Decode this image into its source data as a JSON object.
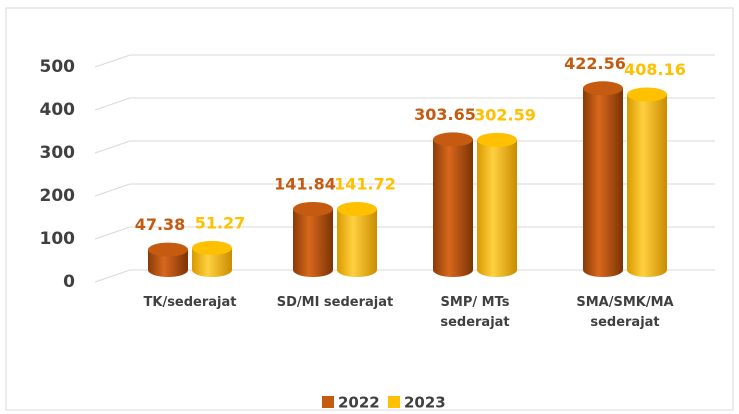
{
  "chart_data": {
    "type": "bar",
    "categories": [
      "TK/sederajat",
      "SD/MI sederajat",
      "SMP/ MTs sederajat",
      "SMA/SMK/MA sederajat"
    ],
    "series": [
      {
        "name": "2022",
        "color": "#c55a11",
        "values": [
          47.38,
          141.84,
          303.65,
          422.56
        ]
      },
      {
        "name": "2023",
        "color": "#ffc000",
        "values": [
          51.27,
          141.72,
          302.59,
          408.16
        ]
      }
    ],
    "ylim": [
      0,
      500
    ],
    "yticks": [
      0,
      100,
      200,
      300,
      400,
      500
    ],
    "grid": true,
    "legend": "bottom"
  }
}
